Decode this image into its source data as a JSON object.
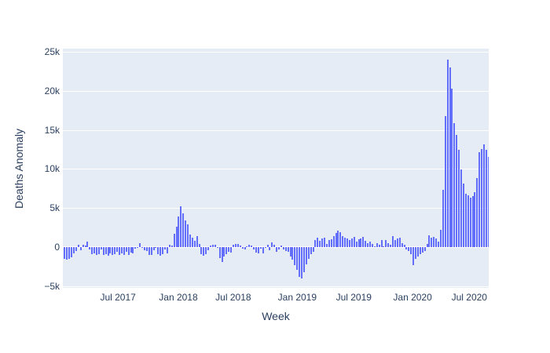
{
  "chart_data": {
    "type": "bar",
    "title": "",
    "xlabel": "Week",
    "ylabel": "Deaths Anomaly",
    "x_unit": "weekly bars",
    "x_start_approx": "2017-01-22",
    "x_ticks": [
      {
        "label": "Jul 2017",
        "week": 23.7
      },
      {
        "label": "Jan 2018",
        "week": 50.2
      },
      {
        "label": "Jul 2018",
        "week": 74.3
      },
      {
        "label": "Jan 2019",
        "week": 102.4
      },
      {
        "label": "Jul 2019",
        "week": 127.2
      },
      {
        "label": "Jan 2020",
        "week": 153.0
      },
      {
        "label": "Jul 2020",
        "week": 177.9
      }
    ],
    "y_ticks": [
      {
        "label": "−5k",
        "value": -5000
      },
      {
        "label": "0",
        "value": 0
      },
      {
        "label": "5k",
        "value": 5000
      },
      {
        "label": "10k",
        "value": 10000
      },
      {
        "label": "15k",
        "value": 15000
      },
      {
        "label": "20k",
        "value": 20000
      },
      {
        "label": "25k",
        "value": 25000
      }
    ],
    "ylim": [
      -6000,
      25600
    ],
    "grid": true,
    "legend": "none",
    "bar_color": "#636efa",
    "plot_bgcolor": "#e5ecf6",
    "grid_color": "#ffffff",
    "text_color": "#2a3f5f",
    "values": [
      -1500,
      -1600,
      -1500,
      -1300,
      -800,
      -500,
      300,
      -400,
      300,
      200,
      700,
      -300,
      -900,
      -800,
      -1000,
      -900,
      -300,
      -1000,
      -900,
      -1100,
      -800,
      -1000,
      -900,
      -600,
      -1000,
      -800,
      -1000,
      -600,
      -1000,
      -700,
      -800,
      -200,
      -100,
      500,
      -100,
      -400,
      -500,
      -1000,
      -1000,
      -400,
      -100,
      -900,
      -1100,
      -900,
      -300,
      -800,
      300,
      200,
      1700,
      2600,
      3900,
      5200,
      4300,
      3400,
      2900,
      1600,
      1200,
      800,
      1400,
      400,
      -900,
      -1100,
      -900,
      -400,
      250,
      300,
      300,
      -150,
      -1400,
      -1900,
      -1200,
      -900,
      -600,
      -700,
      300,
      450,
      400,
      250,
      -200,
      -300,
      100,
      300,
      200,
      -300,
      -700,
      -800,
      -200,
      -800,
      -100,
      300,
      -400,
      600,
      300,
      -600,
      -300,
      200,
      -300,
      -500,
      -600,
      -1200,
      -1600,
      -2300,
      -2900,
      -3800,
      -4000,
      -3200,
      -2200,
      -1500,
      -900,
      -600,
      900,
      1200,
      800,
      1100,
      1200,
      400,
      900,
      1000,
      1400,
      1800,
      2100,
      1900,
      1400,
      1200,
      1100,
      900,
      1100,
      1300,
      700,
      1000,
      1100,
      1300,
      800,
      500,
      700,
      400,
      150,
      500,
      300,
      900,
      150,
      900,
      500,
      300,
      1400,
      900,
      1100,
      1200,
      500,
      300,
      -300,
      -500,
      -900,
      -2300,
      -1500,
      -1200,
      -900,
      -700,
      -500,
      400,
      1500,
      1200,
      1300,
      1100,
      700,
      2200,
      7300,
      16800,
      24000,
      23000,
      20300,
      15900,
      14400,
      12400,
      9900,
      8100,
      6800,
      6600,
      6300,
      6500,
      7000,
      8800,
      12100,
      12600,
      13200,
      12400,
      11500
    ]
  }
}
